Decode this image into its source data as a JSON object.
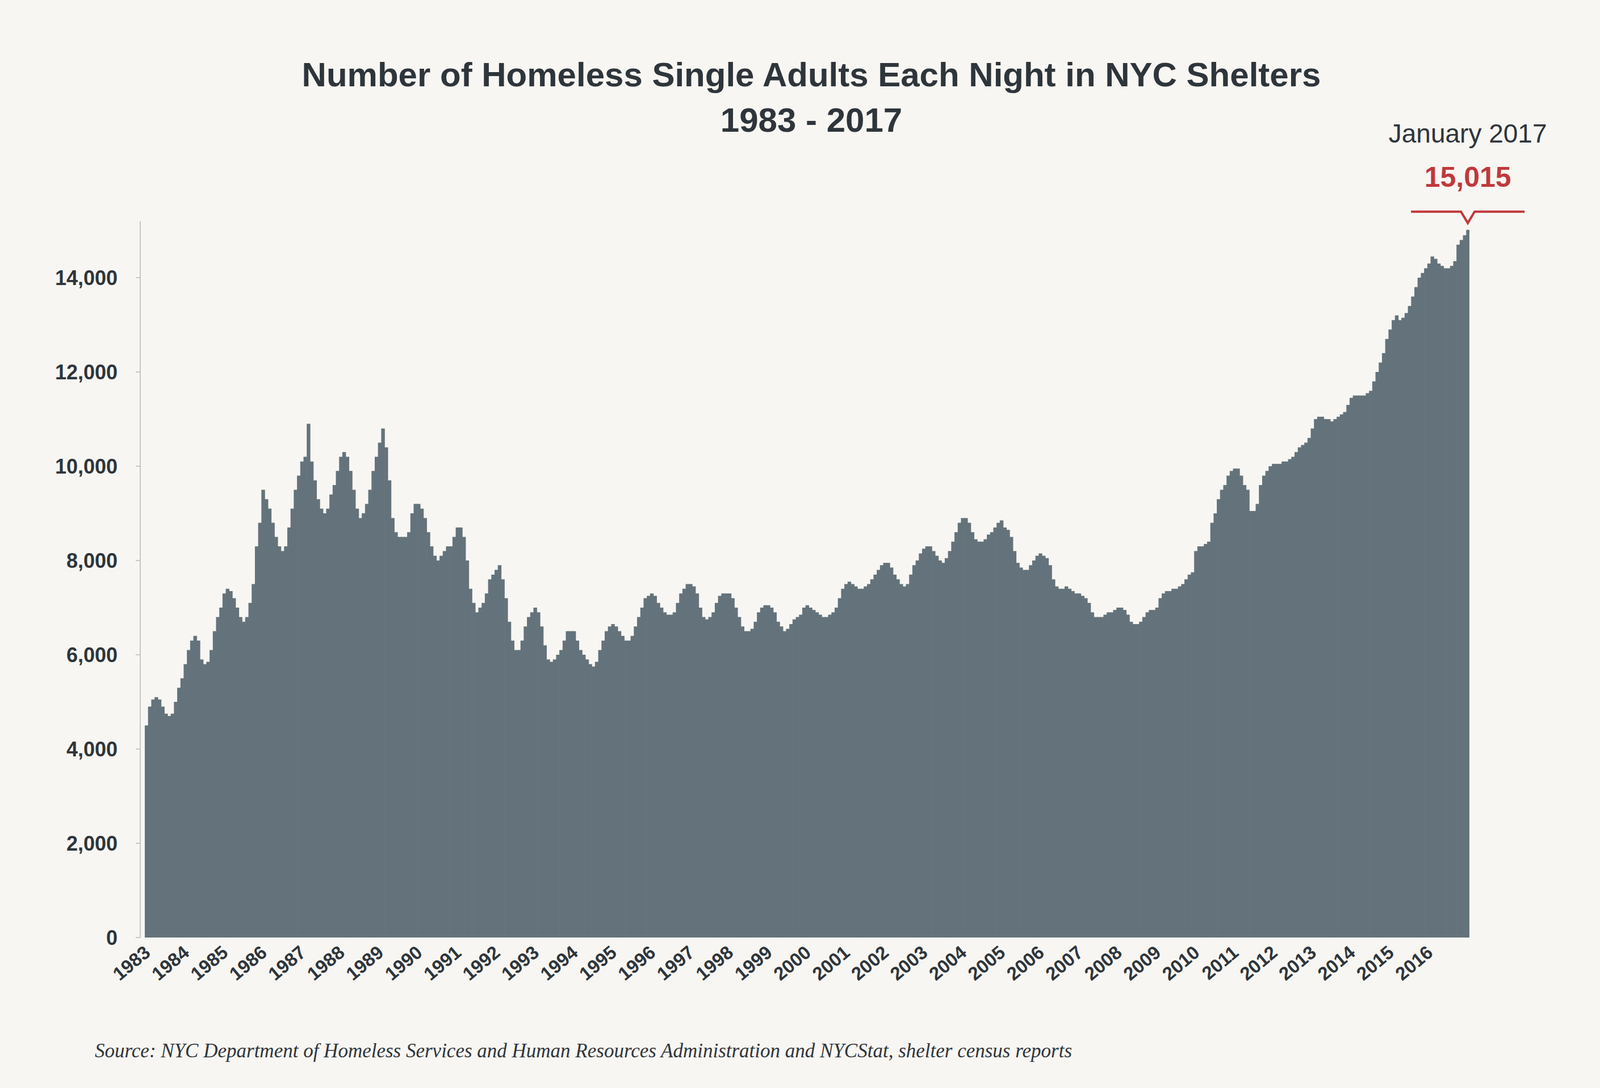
{
  "chart_data": {
    "type": "bar",
    "title": "Number of Homeless Single Adults Each Night in NYC Shelters",
    "subtitle": "1983 - 2017",
    "source": "Source:  NYC Department of Homeless Services and Human Resources Administration and NYCStat, shelter census reports",
    "annotation": {
      "title": "January 2017",
      "label": "15,015",
      "value": 15015
    },
    "color": "#64737b",
    "grid": false,
    "ylim": [
      0,
      15200
    ],
    "yticks": [
      0,
      {
        "value": 2000,
        "label": "2,000"
      },
      {
        "value": 4000,
        "label": "4,000"
      },
      {
        "value": 6000,
        "label": "6,000"
      },
      {
        "value": 8000,
        "label": "8,000"
      },
      {
        "value": 10000,
        "label": "10,000"
      },
      {
        "value": 12000,
        "label": "12,000"
      },
      {
        "value": 14000,
        "label": "14,000"
      }
    ],
    "categories": [
      "1983",
      null,
      null,
      null,
      null,
      null,
      null,
      null,
      null,
      null,
      null,
      null,
      "1984",
      null,
      null,
      null,
      null,
      null,
      null,
      null,
      null,
      null,
      null,
      null,
      "1985",
      null,
      null,
      null,
      null,
      null,
      null,
      null,
      null,
      null,
      null,
      null,
      "1986",
      null,
      null,
      null,
      null,
      null,
      null,
      null,
      null,
      null,
      null,
      null,
      "1987",
      null,
      null,
      null,
      null,
      null,
      null,
      null,
      null,
      null,
      null,
      null,
      "1988",
      null,
      null,
      null,
      null,
      null,
      null,
      null,
      null,
      null,
      null,
      null,
      "1989",
      null,
      null,
      null,
      null,
      null,
      null,
      null,
      null,
      null,
      null,
      null,
      "1990",
      null,
      null,
      null,
      null,
      null,
      null,
      null,
      null,
      null,
      null,
      null,
      "1991",
      null,
      null,
      null,
      null,
      null,
      null,
      null,
      null,
      null,
      null,
      null,
      "1992",
      null,
      null,
      null,
      null,
      null,
      null,
      null,
      null,
      null,
      null,
      null,
      "1993",
      null,
      null,
      null,
      null,
      null,
      null,
      null,
      null,
      null,
      null,
      null,
      "1994",
      null,
      null,
      null,
      null,
      null,
      null,
      null,
      null,
      null,
      null,
      null,
      "1995",
      null,
      null,
      null,
      null,
      null,
      null,
      null,
      null,
      null,
      null,
      null,
      "1996",
      null,
      null,
      null,
      null,
      null,
      null,
      null,
      null,
      null,
      null,
      null,
      "1997",
      null,
      null,
      null,
      null,
      null,
      null,
      null,
      null,
      null,
      null,
      null,
      "1998",
      null,
      null,
      null,
      null,
      null,
      null,
      null,
      null,
      null,
      null,
      null,
      "1999",
      null,
      null,
      null,
      null,
      null,
      null,
      null,
      null,
      null,
      null,
      null,
      "2000",
      null,
      null,
      null,
      null,
      null,
      null,
      null,
      null,
      null,
      null,
      null,
      "2001",
      null,
      null,
      null,
      null,
      null,
      null,
      null,
      null,
      null,
      null,
      null,
      "2002",
      null,
      null,
      null,
      null,
      null,
      null,
      null,
      null,
      null,
      null,
      null,
      "2003",
      null,
      null,
      null,
      null,
      null,
      null,
      null,
      null,
      null,
      null,
      null,
      "2004",
      null,
      null,
      null,
      null,
      null,
      null,
      null,
      null,
      null,
      null,
      null,
      "2005",
      null,
      null,
      null,
      null,
      null,
      null,
      null,
      null,
      null,
      null,
      null,
      "2006",
      null,
      null,
      null,
      null,
      null,
      null,
      null,
      null,
      null,
      null,
      null,
      "2007",
      null,
      null,
      null,
      null,
      null,
      null,
      null,
      null,
      null,
      null,
      null,
      "2008",
      null,
      null,
      null,
      null,
      null,
      null,
      null,
      null,
      null,
      null,
      null,
      "2009",
      null,
      null,
      null,
      null,
      null,
      null,
      null,
      null,
      null,
      null,
      null,
      "2010",
      null,
      null,
      null,
      null,
      null,
      null,
      null,
      null,
      null,
      null,
      null,
      "2011",
      null,
      null,
      null,
      null,
      null,
      null,
      null,
      null,
      null,
      null,
      null,
      "2012",
      null,
      null,
      null,
      null,
      null,
      null,
      null,
      null,
      null,
      null,
      null,
      "2013",
      null,
      null,
      null,
      null,
      null,
      null,
      null,
      null,
      null,
      null,
      null,
      "2014",
      null,
      null,
      null,
      null,
      null,
      null,
      null,
      null,
      null,
      null,
      null,
      "2015",
      null,
      null,
      null,
      null,
      null,
      null,
      null,
      null,
      null,
      null,
      null,
      "2016",
      null,
      null,
      null,
      null,
      null,
      null,
      null,
      null,
      null,
      null,
      null,
      null
    ],
    "values": [
      4500,
      4900,
      5050,
      5100,
      5050,
      4900,
      4750,
      4700,
      4750,
      5000,
      5300,
      5500,
      5800,
      6100,
      6300,
      6400,
      6300,
      5900,
      5800,
      5850,
      6100,
      6500,
      6800,
      7000,
      7300,
      7400,
      7350,
      7200,
      7000,
      6800,
      6700,
      6800,
      7100,
      7500,
      8300,
      8800,
      9500,
      9300,
      9100,
      8800,
      8500,
      8300,
      8200,
      8300,
      8700,
      9100,
      9500,
      9800,
      10100,
      10200,
      10900,
      10100,
      9700,
      9300,
      9100,
      9000,
      9100,
      9400,
      9600,
      9900,
      10200,
      10300,
      10200,
      9900,
      9500,
      9100,
      8900,
      9000,
      9200,
      9500,
      9900,
      10200,
      10500,
      10800,
      10400,
      9700,
      8900,
      8600,
      8500,
      8500,
      8500,
      8600,
      9000,
      9200,
      9200,
      9100,
      8900,
      8600,
      8300,
      8100,
      8000,
      8100,
      8200,
      8300,
      8300,
      8500,
      8700,
      8700,
      8500,
      8000,
      7400,
      7100,
      6900,
      7000,
      7100,
      7300,
      7600,
      7700,
      7800,
      7900,
      7600,
      7200,
      6700,
      6300,
      6100,
      6100,
      6300,
      6600,
      6800,
      6900,
      7000,
      6900,
      6600,
      6200,
      5900,
      5850,
      5900,
      6000,
      6100,
      6300,
      6500,
      6500,
      6500,
      6300,
      6100,
      6000,
      5900,
      5800,
      5750,
      5850,
      6100,
      6300,
      6500,
      6600,
      6650,
      6600,
      6500,
      6400,
      6300,
      6300,
      6400,
      6600,
      6800,
      7000,
      7200,
      7250,
      7300,
      7250,
      7100,
      7000,
      6900,
      6850,
      6850,
      6900,
      7100,
      7300,
      7400,
      7500,
      7500,
      7450,
      7300,
      7000,
      6800,
      6750,
      6800,
      6900,
      7100,
      7250,
      7300,
      7300,
      7300,
      7200,
      7000,
      6800,
      6600,
      6500,
      6500,
      6550,
      6700,
      6900,
      7000,
      7050,
      7050,
      7000,
      6900,
      6700,
      6600,
      6500,
      6550,
      6650,
      6750,
      6800,
      6850,
      7000,
      7050,
      7000,
      6950,
      6900,
      6850,
      6800,
      6800,
      6850,
      6900,
      7000,
      7200,
      7400,
      7500,
      7550,
      7500,
      7450,
      7400,
      7400,
      7450,
      7500,
      7600,
      7700,
      7800,
      7900,
      7950,
      7950,
      7850,
      7700,
      7600,
      7500,
      7450,
      7500,
      7700,
      7900,
      8000,
      8150,
      8250,
      8300,
      8300,
      8200,
      8100,
      8000,
      7950,
      8050,
      8200,
      8400,
      8600,
      8800,
      8900,
      8900,
      8800,
      8600,
      8450,
      8400,
      8400,
      8450,
      8550,
      8600,
      8700,
      8800,
      8850,
      8700,
      8650,
      8500,
      8200,
      7950,
      7850,
      7800,
      7800,
      7900,
      8000,
      8100,
      8150,
      8100,
      8050,
      7900,
      7600,
      7450,
      7400,
      7400,
      7450,
      7400,
      7350,
      7300,
      7300,
      7250,
      7200,
      7100,
      6900,
      6800,
      6800,
      6800,
      6850,
      6900,
      6900,
      6950,
      7000,
      7000,
      6950,
      6850,
      6700,
      6650,
      6650,
      6700,
      6800,
      6900,
      6950,
      6950,
      7000,
      7200,
      7300,
      7350,
      7350,
      7400,
      7400,
      7450,
      7500,
      7600,
      7700,
      7750,
      8200,
      8300,
      8300,
      8350,
      8400,
      8800,
      9000,
      9300,
      9500,
      9600,
      9800,
      9900,
      9950,
      9950,
      9800,
      9600,
      9500,
      9050,
      9050,
      9200,
      9600,
      9800,
      9900,
      10000,
      10050,
      10050,
      10050,
      10100,
      10100,
      10150,
      10200,
      10300,
      10400,
      10450,
      10500,
      10600,
      10800,
      11000,
      11050,
      11050,
      11000,
      11000,
      10950,
      11000,
      11050,
      11100,
      11150,
      11300,
      11450,
      11500,
      11500,
      11500,
      11500,
      11550,
      11600,
      11800,
      12000,
      12200,
      12400,
      12700,
      12900,
      13100,
      13200,
      13100,
      13150,
      13250,
      13400,
      13600,
      13800,
      14000,
      14100,
      14200,
      14300,
      14450,
      14400,
      14300,
      14250,
      14200,
      14200,
      14250,
      14350,
      14700,
      14800,
      14900,
      15015
    ]
  }
}
